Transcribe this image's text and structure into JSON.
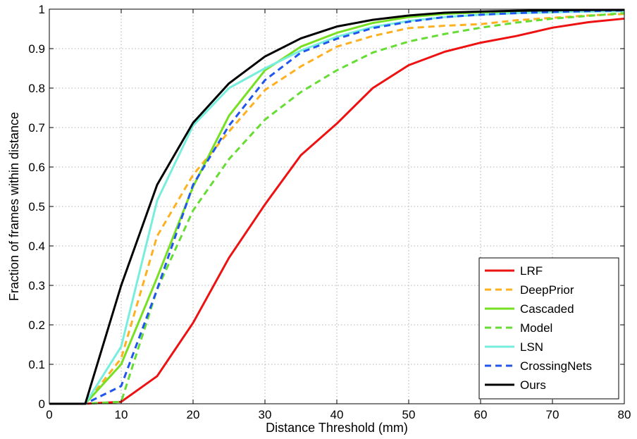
{
  "chart_data": {
    "type": "line",
    "title": "",
    "xlabel": "Distance Threshold (mm)",
    "ylabel": "Fraction of frames within distance",
    "xlim": [
      0,
      80
    ],
    "ylim": [
      0,
      1
    ],
    "xticks": [
      0,
      10,
      20,
      30,
      40,
      50,
      60,
      70,
      80
    ],
    "yticks": [
      0,
      0.1,
      0.2,
      0.3,
      0.4,
      0.5,
      0.6,
      0.7,
      0.8,
      0.9,
      1
    ],
    "grid": true,
    "legend_position": "bottom-right",
    "x": [
      0,
      5,
      10,
      15,
      20,
      25,
      30,
      35,
      40,
      45,
      50,
      55,
      60,
      65,
      70,
      75,
      80
    ],
    "series": [
      {
        "name": "LRF",
        "color": "#ee1111",
        "style": "solid",
        "width": 3,
        "values": [
          0,
          0,
          0.005,
          0.07,
          0.205,
          0.37,
          0.505,
          0.63,
          0.71,
          0.8,
          0.858,
          0.892,
          0.915,
          0.932,
          0.953,
          0.967,
          0.976
        ]
      },
      {
        "name": "DeepPrior",
        "color": "#ffb020",
        "style": "dashed",
        "width": 3,
        "values": [
          0,
          0,
          0.115,
          0.425,
          0.58,
          0.69,
          0.795,
          0.855,
          0.905,
          0.932,
          0.952,
          0.958,
          0.962,
          0.972,
          0.978,
          0.984,
          0.988
        ]
      },
      {
        "name": "Cascaded",
        "color": "#77e022",
        "style": "solid",
        "width": 3,
        "values": [
          0,
          0,
          0.1,
          0.32,
          0.55,
          0.73,
          0.845,
          0.905,
          0.94,
          0.965,
          0.98,
          0.988,
          0.992,
          0.994,
          0.995,
          0.996,
          0.997
        ]
      },
      {
        "name": "Model",
        "color": "#66dd33",
        "style": "dashed",
        "width": 3,
        "values": [
          0,
          0,
          0.005,
          0.29,
          0.49,
          0.62,
          0.72,
          0.79,
          0.845,
          0.89,
          0.918,
          0.937,
          0.953,
          0.966,
          0.976,
          0.983,
          0.99
        ]
      },
      {
        "name": "LSN",
        "color": "#77eedd",
        "style": "solid",
        "width": 3,
        "values": [
          0,
          0,
          0.145,
          0.515,
          0.705,
          0.8,
          0.85,
          0.895,
          0.93,
          0.955,
          0.97,
          0.98,
          0.986,
          0.99,
          0.992,
          0.994,
          0.995
        ]
      },
      {
        "name": "CrossingNets",
        "color": "#2255ee",
        "style": "dashed",
        "width": 3,
        "values": [
          0,
          0,
          0.045,
          0.29,
          0.555,
          0.705,
          0.82,
          0.89,
          0.925,
          0.952,
          0.968,
          0.98,
          0.986,
          0.99,
          0.993,
          0.995,
          0.997
        ]
      },
      {
        "name": "Ours",
        "color": "#000000",
        "style": "solid",
        "width": 3,
        "values": [
          0,
          0,
          0.3,
          0.555,
          0.712,
          0.812,
          0.88,
          0.926,
          0.956,
          0.973,
          0.984,
          0.991,
          0.994,
          0.996,
          0.997,
          0.998,
          0.998
        ]
      }
    ]
  }
}
